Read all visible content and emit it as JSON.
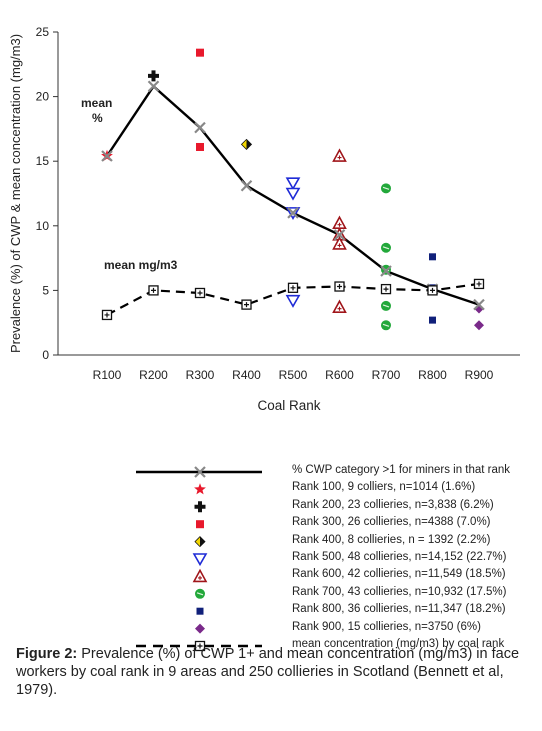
{
  "chart_data": {
    "type": "line",
    "xlabel": "Coal Rank",
    "ylabel": "Prevalence (%) of CWP & mean concentration (mg/m3)",
    "ylim": [
      0,
      25
    ],
    "yticks": [
      0,
      5,
      10,
      15,
      20,
      25
    ],
    "categories": [
      "R100",
      "R200",
      "R300",
      "R400",
      "R500",
      "R600",
      "R700",
      "R800",
      "R900"
    ],
    "series": [
      {
        "name": "% CWP category >1 for miners in that rank",
        "values": [
          15.4,
          20.8,
          17.6,
          13.1,
          11.0,
          9.3,
          6.5,
          5.1,
          3.9
        ]
      },
      {
        "name": "mean concentration (mg/m3) by coal rank",
        "values": [
          3.1,
          5.0,
          4.8,
          3.9,
          5.2,
          5.3,
          5.1,
          5.0,
          5.5
        ]
      }
    ],
    "colliery_points": [
      {
        "name": "Rank 100, 9 colliers, n=1014 (1.6%)",
        "x": "R100",
        "values": [
          15.4
        ],
        "marker": "star",
        "color": "#e8192c"
      },
      {
        "name": "Rank 200, 23 collieries, n=3,838 (6.2%)",
        "x": "R200",
        "values": [
          21.6
        ],
        "marker": "plus",
        "color": "#111111"
      },
      {
        "name": "Rank 300, 26 collieries, n=4388 (7.0%)",
        "x": "R300",
        "values": [
          23.4,
          16.1
        ],
        "marker": "square",
        "color": "#e8192c"
      },
      {
        "name": "Rank 400, 8 collieries, n = 1392 (2.2%)",
        "x": "R400",
        "values": [
          16.3
        ],
        "marker": "diamond",
        "color": "#f2d600"
      },
      {
        "name": "Rank 500, 48 collieries, n=14,152 (22.7%)",
        "x": "R500",
        "values": [
          13.3,
          12.5,
          11.0,
          4.2
        ],
        "marker": "tri-down",
        "color": "#1f2bd6"
      },
      {
        "name": "Rank 600, 42 collieries, n=11,549 (18.5%)",
        "x": "R600",
        "values": [
          15.4,
          10.2,
          9.3,
          8.6,
          3.7
        ],
        "marker": "tri-up",
        "color": "#a0151a"
      },
      {
        "name": "Rank 700, 43 collieries, n=10,932 (17.5%)",
        "x": "R700",
        "values": [
          12.9,
          8.3,
          6.6,
          3.8,
          2.3
        ],
        "marker": "circle",
        "color": "#22a83a"
      },
      {
        "name": "Rank 800, 36 collieries, n=11,347 (18.2%)",
        "x": "R800",
        "values": [
          7.6,
          5.2,
          2.7
        ],
        "marker": "small-square",
        "color": "#10207a"
      },
      {
        "name": "Rank 900, 15 collieries, n=3750 (6%)",
        "x": "R900",
        "values": [
          3.6,
          2.3
        ],
        "marker": "diamond",
        "color": "#7a2a8a"
      }
    ],
    "annotations": [
      {
        "text": "mean",
        "sub": "%"
      },
      {
        "text": "mean mg/m3"
      }
    ],
    "grid": false,
    "legend_position": "bottom"
  },
  "caption": {
    "label": "Figure 2:",
    "text": " Prevalence (%) of CWP 1+ and mean concentration (mg/m3) in face workers by coal rank in 9 areas and 250 collieries in Scotland (Bennett et al, 1979)."
  }
}
